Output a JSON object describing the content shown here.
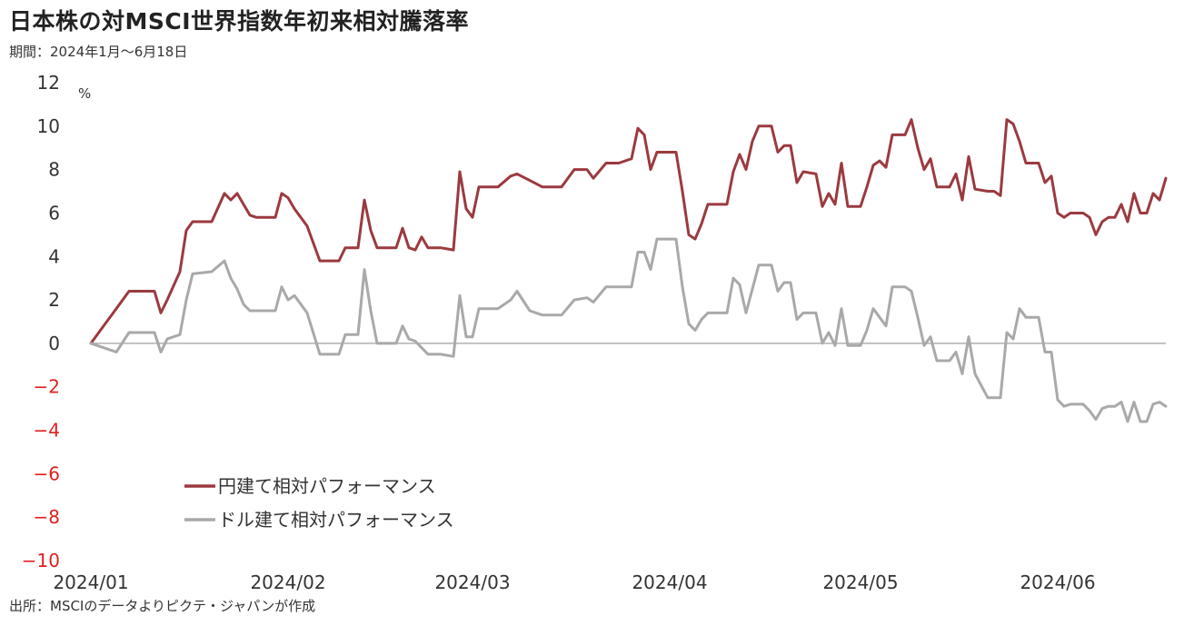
{
  "header": {
    "title": "日本株の対MSCI世界指数年初来相対騰落率",
    "subtitle": "期間：2024年1月～6月18日"
  },
  "footer": {
    "source": "出所：MSCIのデータよりピクテ・ジャパンが作成"
  },
  "colors": {
    "yen_series": "#9b3a3f",
    "dollar_series": "#a9a9a9",
    "negative_tick": "#e02020",
    "positive_tick": "#333333",
    "zero_line": "#b0b0b0"
  },
  "chart_data": {
    "type": "line",
    "title": "日本株の対MSCI世界指数年初来相対騰落率",
    "subtitle": "期間：2024年1月～6月18日",
    "unit": "%",
    "ylim": [
      -10,
      12
    ],
    "y_ticks": [
      "12",
      "10",
      "8",
      "6",
      "4",
      "2",
      "0",
      "−2",
      "−4",
      "−6",
      "−8",
      "−10"
    ],
    "x_range": [
      "2024-01-01",
      "2024-06-18"
    ],
    "x_ticks": [
      {
        "label": "2024/01",
        "date": "2024-01-01"
      },
      {
        "label": "2024/02",
        "date": "2024-02-01"
      },
      {
        "label": "2024/03",
        "date": "2024-03-01"
      },
      {
        "label": "2024/04",
        "date": "2024-04-01"
      },
      {
        "label": "2024/05",
        "date": "2024-05-01"
      },
      {
        "label": "2024/06",
        "date": "2024-06-01"
      }
    ],
    "grid": false,
    "legend_position": "bottom-left",
    "series": [
      {
        "name": "円建て相対パフォーマンス",
        "color": "#9b3a3f",
        "points": [
          [
            "2024-01-01",
            0.0
          ],
          [
            "2024-01-03",
            0.8
          ],
          [
            "2024-01-05",
            1.6
          ],
          [
            "2024-01-07",
            2.4
          ],
          [
            "2024-01-09",
            2.4
          ],
          [
            "2024-01-11",
            2.4
          ],
          [
            "2024-01-12",
            1.4
          ],
          [
            "2024-01-13",
            2.0
          ],
          [
            "2024-01-15",
            3.3
          ],
          [
            "2024-01-16",
            5.2
          ],
          [
            "2024-01-17",
            5.6
          ],
          [
            "2024-01-20",
            5.6
          ],
          [
            "2024-01-22",
            6.9
          ],
          [
            "2024-01-23",
            6.6
          ],
          [
            "2024-01-24",
            6.9
          ],
          [
            "2024-01-25",
            6.4
          ],
          [
            "2024-01-26",
            5.9
          ],
          [
            "2024-01-27",
            5.8
          ],
          [
            "2024-01-30",
            5.8
          ],
          [
            "2024-01-31",
            6.9
          ],
          [
            "2024-02-01",
            6.7
          ],
          [
            "2024-02-02",
            6.2
          ],
          [
            "2024-02-04",
            5.4
          ],
          [
            "2024-02-06",
            3.8
          ],
          [
            "2024-02-07",
            3.8
          ],
          [
            "2024-02-09",
            3.8
          ],
          [
            "2024-02-10",
            4.4
          ],
          [
            "2024-02-12",
            4.4
          ],
          [
            "2024-02-13",
            6.6
          ],
          [
            "2024-02-14",
            5.2
          ],
          [
            "2024-02-15",
            4.4
          ],
          [
            "2024-02-18",
            4.4
          ],
          [
            "2024-02-19",
            5.3
          ],
          [
            "2024-02-20",
            4.4
          ],
          [
            "2024-02-21",
            4.3
          ],
          [
            "2024-02-22",
            4.9
          ],
          [
            "2024-02-23",
            4.4
          ],
          [
            "2024-02-25",
            4.4
          ],
          [
            "2024-02-27",
            4.3
          ],
          [
            "2024-02-28",
            7.9
          ],
          [
            "2024-02-29",
            6.2
          ],
          [
            "2024-03-01",
            5.8
          ],
          [
            "2024-03-02",
            7.2
          ],
          [
            "2024-03-05",
            7.2
          ],
          [
            "2024-03-07",
            7.7
          ],
          [
            "2024-03-08",
            7.8
          ],
          [
            "2024-03-10",
            7.5
          ],
          [
            "2024-03-12",
            7.2
          ],
          [
            "2024-03-14",
            7.2
          ],
          [
            "2024-03-15",
            7.2
          ],
          [
            "2024-03-17",
            8.0
          ],
          [
            "2024-03-19",
            8.0
          ],
          [
            "2024-03-20",
            7.6
          ],
          [
            "2024-03-22",
            8.3
          ],
          [
            "2024-03-24",
            8.3
          ],
          [
            "2024-03-26",
            8.5
          ],
          [
            "2024-03-27",
            9.9
          ],
          [
            "2024-03-28",
            9.6
          ],
          [
            "2024-03-29",
            8.0
          ],
          [
            "2024-03-30",
            8.8
          ],
          [
            "2024-04-01",
            8.8
          ],
          [
            "2024-04-02",
            8.8
          ],
          [
            "2024-04-03",
            7.0
          ],
          [
            "2024-04-04",
            5.0
          ],
          [
            "2024-04-05",
            4.8
          ],
          [
            "2024-04-06",
            5.5
          ],
          [
            "2024-04-07",
            6.4
          ],
          [
            "2024-04-09",
            6.4
          ],
          [
            "2024-04-10",
            6.4
          ],
          [
            "2024-04-11",
            7.9
          ],
          [
            "2024-04-12",
            8.7
          ],
          [
            "2024-04-13",
            8.0
          ],
          [
            "2024-04-14",
            9.3
          ],
          [
            "2024-04-15",
            10.0
          ],
          [
            "2024-04-16",
            10.0
          ],
          [
            "2024-04-17",
            10.0
          ],
          [
            "2024-04-18",
            8.8
          ],
          [
            "2024-04-19",
            9.1
          ],
          [
            "2024-04-20",
            9.1
          ],
          [
            "2024-04-21",
            7.4
          ],
          [
            "2024-04-22",
            7.9
          ],
          [
            "2024-04-24",
            7.8
          ],
          [
            "2024-04-25",
            6.3
          ],
          [
            "2024-04-26",
            6.9
          ],
          [
            "2024-04-27",
            6.4
          ],
          [
            "2024-04-28",
            8.3
          ],
          [
            "2024-04-29",
            6.3
          ],
          [
            "2024-04-30",
            6.3
          ],
          [
            "2024-05-01",
            6.3
          ],
          [
            "2024-05-02",
            7.2
          ],
          [
            "2024-05-03",
            8.2
          ],
          [
            "2024-05-04",
            8.4
          ],
          [
            "2024-05-05",
            8.1
          ],
          [
            "2024-05-06",
            9.6
          ],
          [
            "2024-05-07",
            9.6
          ],
          [
            "2024-05-08",
            9.6
          ],
          [
            "2024-05-09",
            10.3
          ],
          [
            "2024-05-10",
            9.0
          ],
          [
            "2024-05-11",
            8.0
          ],
          [
            "2024-05-12",
            8.5
          ],
          [
            "2024-05-13",
            7.2
          ],
          [
            "2024-05-14",
            7.2
          ],
          [
            "2024-05-15",
            7.2
          ],
          [
            "2024-05-16",
            7.8
          ],
          [
            "2024-05-17",
            6.6
          ],
          [
            "2024-05-18",
            8.6
          ],
          [
            "2024-05-19",
            7.1
          ],
          [
            "2024-05-21",
            7.0
          ],
          [
            "2024-05-22",
            7.0
          ],
          [
            "2024-05-23",
            6.8
          ],
          [
            "2024-05-24",
            10.3
          ],
          [
            "2024-05-25",
            10.1
          ],
          [
            "2024-05-26",
            9.3
          ],
          [
            "2024-05-27",
            8.3
          ],
          [
            "2024-05-28",
            8.3
          ],
          [
            "2024-05-29",
            8.3
          ],
          [
            "2024-05-30",
            7.4
          ],
          [
            "2024-05-31",
            7.7
          ],
          [
            "2024-06-01",
            6.0
          ],
          [
            "2024-06-02",
            5.8
          ],
          [
            "2024-06-03",
            6.0
          ],
          [
            "2024-06-04",
            6.0
          ],
          [
            "2024-06-05",
            6.0
          ],
          [
            "2024-06-06",
            5.8
          ],
          [
            "2024-06-07",
            5.0
          ],
          [
            "2024-06-08",
            5.6
          ],
          [
            "2024-06-09",
            5.8
          ],
          [
            "2024-06-10",
            5.8
          ],
          [
            "2024-06-11",
            6.4
          ],
          [
            "2024-06-12",
            5.6
          ],
          [
            "2024-06-13",
            6.9
          ],
          [
            "2024-06-14",
            6.0
          ],
          [
            "2024-06-15",
            6.0
          ],
          [
            "2024-06-16",
            6.9
          ],
          [
            "2024-06-17",
            6.6
          ],
          [
            "2024-06-18",
            7.6
          ]
        ]
      },
      {
        "name": "ドル建て相対パフォーマンス",
        "color": "#a9a9a9",
        "points": [
          [
            "2024-01-01",
            0.0
          ],
          [
            "2024-01-03",
            -0.2
          ],
          [
            "2024-01-05",
            -0.4
          ],
          [
            "2024-01-07",
            0.5
          ],
          [
            "2024-01-09",
            0.5
          ],
          [
            "2024-01-11",
            0.5
          ],
          [
            "2024-01-12",
            -0.4
          ],
          [
            "2024-01-13",
            0.2
          ],
          [
            "2024-01-15",
            0.4
          ],
          [
            "2024-01-16",
            2.0
          ],
          [
            "2024-01-17",
            3.2
          ],
          [
            "2024-01-20",
            3.3
          ],
          [
            "2024-01-22",
            3.8
          ],
          [
            "2024-01-23",
            3.0
          ],
          [
            "2024-01-24",
            2.5
          ],
          [
            "2024-01-25",
            1.8
          ],
          [
            "2024-01-26",
            1.5
          ],
          [
            "2024-01-27",
            1.5
          ],
          [
            "2024-01-30",
            1.5
          ],
          [
            "2024-01-31",
            2.6
          ],
          [
            "2024-02-01",
            2.0
          ],
          [
            "2024-02-02",
            2.2
          ],
          [
            "2024-02-04",
            1.4
          ],
          [
            "2024-02-06",
            -0.5
          ],
          [
            "2024-02-07",
            -0.5
          ],
          [
            "2024-02-09",
            -0.5
          ],
          [
            "2024-02-10",
            0.4
          ],
          [
            "2024-02-12",
            0.4
          ],
          [
            "2024-02-13",
            3.4
          ],
          [
            "2024-02-14",
            1.5
          ],
          [
            "2024-02-15",
            0.0
          ],
          [
            "2024-02-18",
            0.0
          ],
          [
            "2024-02-19",
            0.8
          ],
          [
            "2024-02-20",
            0.2
          ],
          [
            "2024-02-21",
            0.1
          ],
          [
            "2024-02-22",
            -0.2
          ],
          [
            "2024-02-23",
            -0.5
          ],
          [
            "2024-02-25",
            -0.5
          ],
          [
            "2024-02-27",
            -0.6
          ],
          [
            "2024-02-28",
            2.2
          ],
          [
            "2024-02-29",
            0.3
          ],
          [
            "2024-03-01",
            0.3
          ],
          [
            "2024-03-02",
            1.6
          ],
          [
            "2024-03-05",
            1.6
          ],
          [
            "2024-03-07",
            2.0
          ],
          [
            "2024-03-08",
            2.4
          ],
          [
            "2024-03-10",
            1.5
          ],
          [
            "2024-03-12",
            1.3
          ],
          [
            "2024-03-14",
            1.3
          ],
          [
            "2024-03-15",
            1.3
          ],
          [
            "2024-03-17",
            2.0
          ],
          [
            "2024-03-19",
            2.1
          ],
          [
            "2024-03-20",
            1.9
          ],
          [
            "2024-03-22",
            2.6
          ],
          [
            "2024-03-24",
            2.6
          ],
          [
            "2024-03-26",
            2.6
          ],
          [
            "2024-03-27",
            4.2
          ],
          [
            "2024-03-28",
            4.2
          ],
          [
            "2024-03-29",
            3.4
          ],
          [
            "2024-03-30",
            4.8
          ],
          [
            "2024-04-01",
            4.8
          ],
          [
            "2024-04-02",
            4.8
          ],
          [
            "2024-04-03",
            2.6
          ],
          [
            "2024-04-04",
            0.9
          ],
          [
            "2024-04-05",
            0.6
          ],
          [
            "2024-04-06",
            1.1
          ],
          [
            "2024-04-07",
            1.4
          ],
          [
            "2024-04-09",
            1.4
          ],
          [
            "2024-04-10",
            1.4
          ],
          [
            "2024-04-11",
            3.0
          ],
          [
            "2024-04-12",
            2.7
          ],
          [
            "2024-04-13",
            1.4
          ],
          [
            "2024-04-14",
            2.5
          ],
          [
            "2024-04-15",
            3.6
          ],
          [
            "2024-04-16",
            3.6
          ],
          [
            "2024-04-17",
            3.6
          ],
          [
            "2024-04-18",
            2.4
          ],
          [
            "2024-04-19",
            2.8
          ],
          [
            "2024-04-20",
            2.8
          ],
          [
            "2024-04-21",
            1.1
          ],
          [
            "2024-04-22",
            1.4
          ],
          [
            "2024-04-24",
            1.4
          ],
          [
            "2024-04-25",
            0.0
          ],
          [
            "2024-04-26",
            0.5
          ],
          [
            "2024-04-27",
            -0.1
          ],
          [
            "2024-04-28",
            1.6
          ],
          [
            "2024-04-29",
            -0.1
          ],
          [
            "2024-04-30",
            -0.1
          ],
          [
            "2024-05-01",
            -0.1
          ],
          [
            "2024-05-02",
            0.6
          ],
          [
            "2024-05-03",
            1.6
          ],
          [
            "2024-05-04",
            1.2
          ],
          [
            "2024-05-05",
            0.8
          ],
          [
            "2024-05-06",
            2.6
          ],
          [
            "2024-05-07",
            2.6
          ],
          [
            "2024-05-08",
            2.6
          ],
          [
            "2024-05-09",
            2.4
          ],
          [
            "2024-05-10",
            1.2
          ],
          [
            "2024-05-11",
            -0.1
          ],
          [
            "2024-05-12",
            0.3
          ],
          [
            "2024-05-13",
            -0.8
          ],
          [
            "2024-05-14",
            -0.8
          ],
          [
            "2024-05-15",
            -0.8
          ],
          [
            "2024-05-16",
            -0.4
          ],
          [
            "2024-05-17",
            -1.4
          ],
          [
            "2024-05-18",
            0.3
          ],
          [
            "2024-05-19",
            -1.4
          ],
          [
            "2024-05-21",
            -2.5
          ],
          [
            "2024-05-22",
            -2.5
          ],
          [
            "2024-05-23",
            -2.5
          ],
          [
            "2024-05-24",
            0.5
          ],
          [
            "2024-05-25",
            0.2
          ],
          [
            "2024-05-26",
            1.6
          ],
          [
            "2024-05-27",
            1.2
          ],
          [
            "2024-05-28",
            1.2
          ],
          [
            "2024-05-29",
            1.2
          ],
          [
            "2024-05-30",
            -0.4
          ],
          [
            "2024-05-31",
            -0.4
          ],
          [
            "2024-06-01",
            -2.6
          ],
          [
            "2024-06-02",
            -2.9
          ],
          [
            "2024-06-03",
            -2.8
          ],
          [
            "2024-06-04",
            -2.8
          ],
          [
            "2024-06-05",
            -2.8
          ],
          [
            "2024-06-06",
            -3.1
          ],
          [
            "2024-06-07",
            -3.5
          ],
          [
            "2024-06-08",
            -3.0
          ],
          [
            "2024-06-09",
            -2.9
          ],
          [
            "2024-06-10",
            -2.9
          ],
          [
            "2024-06-11",
            -2.7
          ],
          [
            "2024-06-12",
            -3.6
          ],
          [
            "2024-06-13",
            -2.7
          ],
          [
            "2024-06-14",
            -3.6
          ],
          [
            "2024-06-15",
            -3.6
          ],
          [
            "2024-06-16",
            -2.8
          ],
          [
            "2024-06-17",
            -2.7
          ],
          [
            "2024-06-18",
            -2.9
          ]
        ]
      }
    ]
  }
}
